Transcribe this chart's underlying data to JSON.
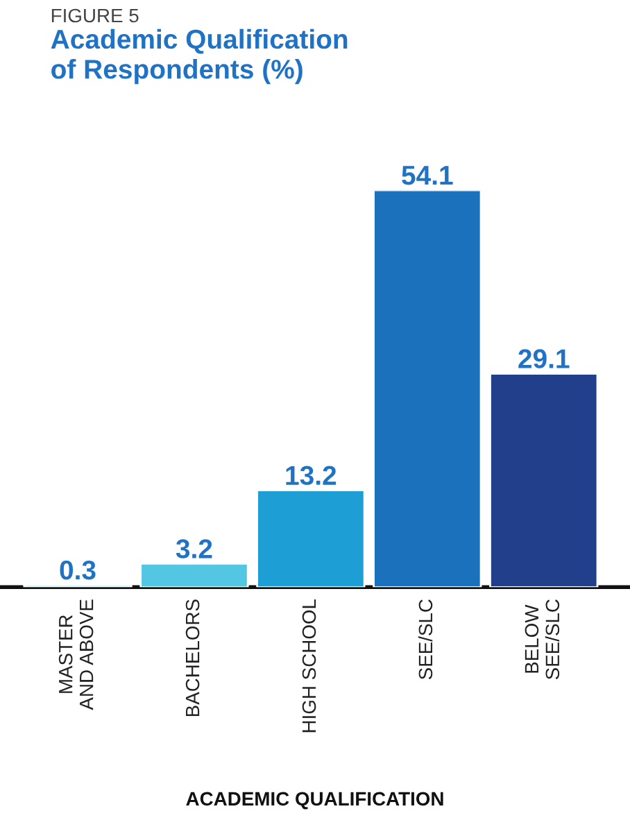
{
  "chart_data": {
    "type": "bar",
    "title": "Academic Qualification\nof Respondents (%)",
    "annotations": [
      "FIGURE 5"
    ],
    "xlabel": "ACADEMIC QUALIFICATION",
    "categories": [
      "MASTER AND ABOVE",
      "BACHELORS",
      "HIGH SCHOOL",
      "SEE/SLC",
      "BELOW SEE/SLC"
    ],
    "values": [
      0.3,
      3.2,
      13.2,
      54.1,
      29.1
    ],
    "colors": [
      "#a9e1f0",
      "#52c6e3",
      "#1d9fd6",
      "#1b71bb",
      "#223f8b"
    ],
    "data_labels": true,
    "grid": false,
    "legend": false
  }
}
